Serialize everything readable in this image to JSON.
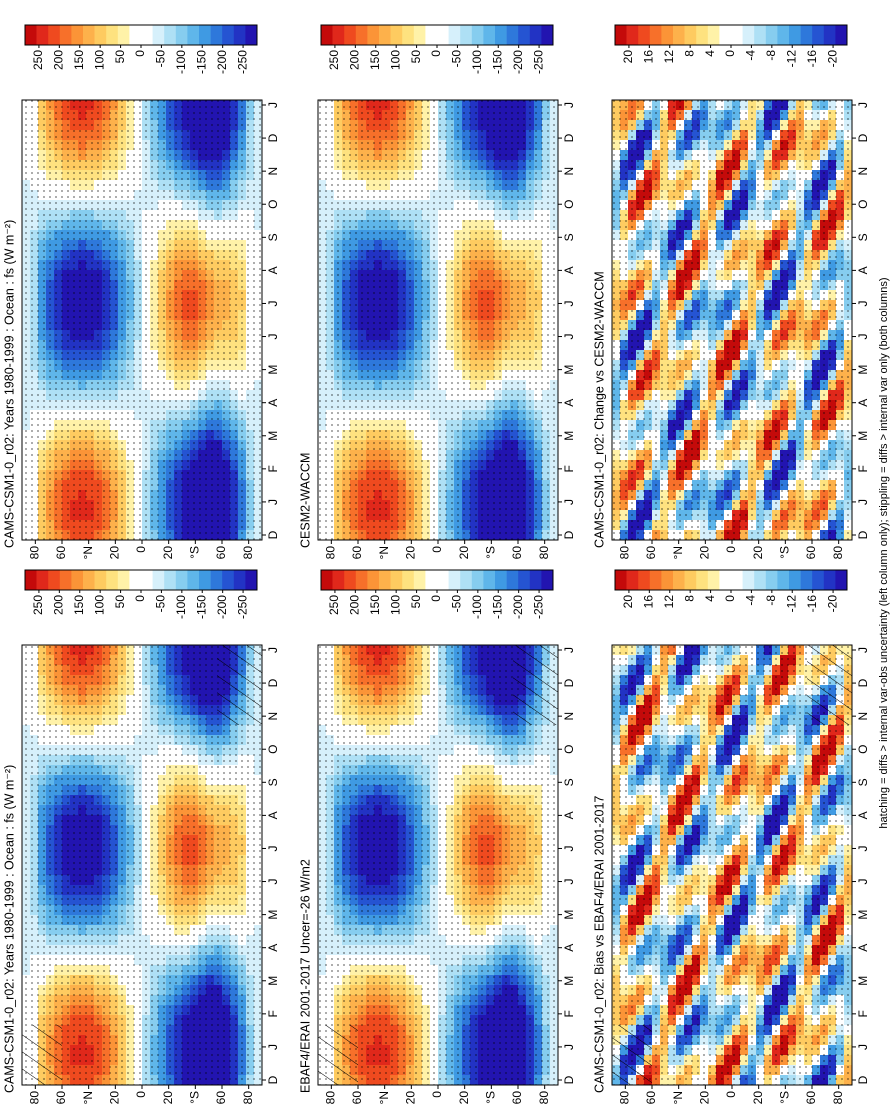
{
  "chart_data": [
    {
      "type": "contour",
      "title": "CAMS-CSM1-0_r02: Years 1980-1999 : Ocean : fs (W m⁻²)",
      "categories": [
        "D",
        "J",
        "F",
        "M",
        "A",
        "M",
        "J",
        "J",
        "A",
        "S",
        "O",
        "N",
        "D",
        "J"
      ],
      "ylim": [
        90,
        -90
      ],
      "yticks": [
        80,
        60,
        {
          "value": 40,
          "label": "°N"
        },
        20,
        0,
        {
          "value": -20,
          "label": "20"
        },
        {
          "value": -40,
          "label": "°S"
        },
        {
          "value": -60,
          "label": "60"
        },
        {
          "value": -80,
          "label": "80"
        }
      ],
      "colorbar": {
        "ticks": [
          250,
          200,
          150,
          100,
          50,
          0,
          -50,
          -100,
          -150,
          -200,
          -250
        ],
        "colors": [
          "#c40a0a",
          "#e0281b",
          "#ef4a1f",
          "#f7702a",
          "#fb9437",
          "#fdb14b",
          "#fecb60",
          "#fee27f",
          "#fff2a8",
          "#ffffff",
          "#ffffff",
          "#d6f0fb",
          "#aee0f5",
          "#86cdef",
          "#5fb6ea",
          "#3f9ae3",
          "#2e78db",
          "#2554d2",
          "#2233c4",
          "#2214b0"
        ]
      }
    },
    {
      "type": "contour",
      "title": "CAMS-CSM1-0_r02: Years 1980-1999 : Ocean : fs (W m⁻²)",
      "categories": [
        "D",
        "J",
        "F",
        "M",
        "A",
        "M",
        "J",
        "J",
        "A",
        "S",
        "O",
        "N",
        "D",
        "J"
      ],
      "ylim": [
        90,
        -90
      ],
      "yticks": [
        80,
        60,
        {
          "value": 40,
          "label": "°N"
        },
        20,
        0,
        {
          "value": -20,
          "label": "20"
        },
        {
          "value": -40,
          "label": "°S"
        },
        {
          "value": -60,
          "label": "60"
        },
        {
          "value": -80,
          "label": "80"
        }
      ],
      "colorbar": {
        "ticks": [
          250,
          200,
          150,
          100,
          50,
          0,
          -50,
          -100,
          -150,
          -200,
          -250
        ],
        "colors": [
          "#c40a0a",
          "#e0281b",
          "#ef4a1f",
          "#f7702a",
          "#fb9437",
          "#fdb14b",
          "#fecb60",
          "#fee27f",
          "#fff2a8",
          "#ffffff",
          "#ffffff",
          "#d6f0fb",
          "#aee0f5",
          "#86cdef",
          "#5fb6ea",
          "#3f9ae3",
          "#2e78db",
          "#2554d2",
          "#2233c4",
          "#2214b0"
        ]
      }
    },
    {
      "type": "contour",
      "title": "EBAF4/ERAI 2001-2017 Uncer=-26 W/m2",
      "categories": [
        "D",
        "J",
        "F",
        "M",
        "A",
        "M",
        "J",
        "J",
        "A",
        "S",
        "O",
        "N",
        "D",
        "J"
      ],
      "ylim": [
        90,
        -90
      ],
      "yticks": [
        80,
        60,
        {
          "value": 40,
          "label": "°N"
        },
        20,
        0,
        {
          "value": -20,
          "label": "20"
        },
        {
          "value": -40,
          "label": "°S"
        },
        {
          "value": -60,
          "label": "60"
        },
        {
          "value": -80,
          "label": "80"
        }
      ],
      "colorbar": {
        "ticks": [
          250,
          200,
          150,
          100,
          50,
          0,
          -50,
          -100,
          -150,
          -200,
          -250
        ],
        "colors": [
          "#c40a0a",
          "#e0281b",
          "#ef4a1f",
          "#f7702a",
          "#fb9437",
          "#fdb14b",
          "#fecb60",
          "#fee27f",
          "#fff2a8",
          "#ffffff",
          "#ffffff",
          "#d6f0fb",
          "#aee0f5",
          "#86cdef",
          "#5fb6ea",
          "#3f9ae3",
          "#2e78db",
          "#2554d2",
          "#2233c4",
          "#2214b0"
        ]
      }
    },
    {
      "type": "contour",
      "title": "CESM2-WACCM",
      "categories": [
        "D",
        "J",
        "F",
        "M",
        "A",
        "M",
        "J",
        "J",
        "A",
        "S",
        "O",
        "N",
        "D",
        "J"
      ],
      "ylim": [
        90,
        -90
      ],
      "yticks": [
        80,
        60,
        {
          "value": 40,
          "label": "°N"
        },
        20,
        0,
        {
          "value": -20,
          "label": "20"
        },
        {
          "value": -40,
          "label": "°S"
        },
        {
          "value": -60,
          "label": "60"
        },
        {
          "value": -80,
          "label": "80"
        }
      ],
      "colorbar": {
        "ticks": [
          250,
          200,
          150,
          100,
          50,
          0,
          -50,
          -100,
          -150,
          -200,
          -250
        ],
        "colors": [
          "#c40a0a",
          "#e0281b",
          "#ef4a1f",
          "#f7702a",
          "#fb9437",
          "#fdb14b",
          "#fecb60",
          "#fee27f",
          "#fff2a8",
          "#ffffff",
          "#ffffff",
          "#d6f0fb",
          "#aee0f5",
          "#86cdef",
          "#5fb6ea",
          "#3f9ae3",
          "#2e78db",
          "#2554d2",
          "#2233c4",
          "#2214b0"
        ]
      }
    },
    {
      "type": "contour",
      "title": "CAMS-CSM1-0_r02: Bias vs EBAF4/ERAI 2001-2017",
      "categories": [
        "D",
        "J",
        "F",
        "M",
        "A",
        "M",
        "J",
        "J",
        "A",
        "S",
        "O",
        "N",
        "D",
        "J"
      ],
      "ylim": [
        90,
        -90
      ],
      "yticks": [
        80,
        60,
        {
          "value": 40,
          "label": "°N"
        },
        20,
        0,
        {
          "value": -20,
          "label": "20"
        },
        {
          "value": -40,
          "label": "°S"
        },
        {
          "value": -60,
          "label": "60"
        },
        {
          "value": -80,
          "label": "80"
        }
      ],
      "colorbar": {
        "ticks": [
          20,
          16,
          12,
          8,
          4,
          0,
          -4,
          -8,
          -12,
          -16,
          -20
        ],
        "colors": [
          "#c40a0a",
          "#e0281b",
          "#ef4a1f",
          "#f7702a",
          "#fb9437",
          "#fdb14b",
          "#fecb60",
          "#fee27f",
          "#fff2a8",
          "#ffffff",
          "#ffffff",
          "#d6f0fb",
          "#aee0f5",
          "#86cdef",
          "#5fb6ea",
          "#3f9ae3",
          "#2e78db",
          "#2554d2",
          "#2233c4",
          "#2214b0"
        ]
      }
    },
    {
      "type": "contour",
      "title": "CAMS-CSM1-0_r02: Change vs CESM2-WACCM",
      "categories": [
        "D",
        "J",
        "F",
        "M",
        "A",
        "M",
        "J",
        "J",
        "A",
        "S",
        "O",
        "N",
        "D",
        "J"
      ],
      "ylim": [
        90,
        -90
      ],
      "yticks": [
        80,
        60,
        {
          "value": 40,
          "label": "°N"
        },
        20,
        0,
        {
          "value": -20,
          "label": "20"
        },
        {
          "value": -40,
          "label": "°S"
        },
        {
          "value": -60,
          "label": "60"
        },
        {
          "value": -80,
          "label": "80"
        }
      ],
      "colorbar": {
        "ticks": [
          20,
          16,
          12,
          8,
          4,
          0,
          -4,
          -8,
          -12,
          -16,
          -20
        ],
        "colors": [
          "#c40a0a",
          "#e0281b",
          "#ef4a1f",
          "#f7702a",
          "#fb9437",
          "#fdb14b",
          "#fecb60",
          "#fee27f",
          "#fff2a8",
          "#ffffff",
          "#ffffff",
          "#d6f0fb",
          "#aee0f5",
          "#86cdef",
          "#5fb6ea",
          "#3f9ae3",
          "#2e78db",
          "#2554d2",
          "#2233c4",
          "#2214b0"
        ]
      }
    }
  ],
  "footnote": "hatching = diffs > internal var-obs uncertainty (left column only); stippling = diffs > internal var only (both columns)"
}
